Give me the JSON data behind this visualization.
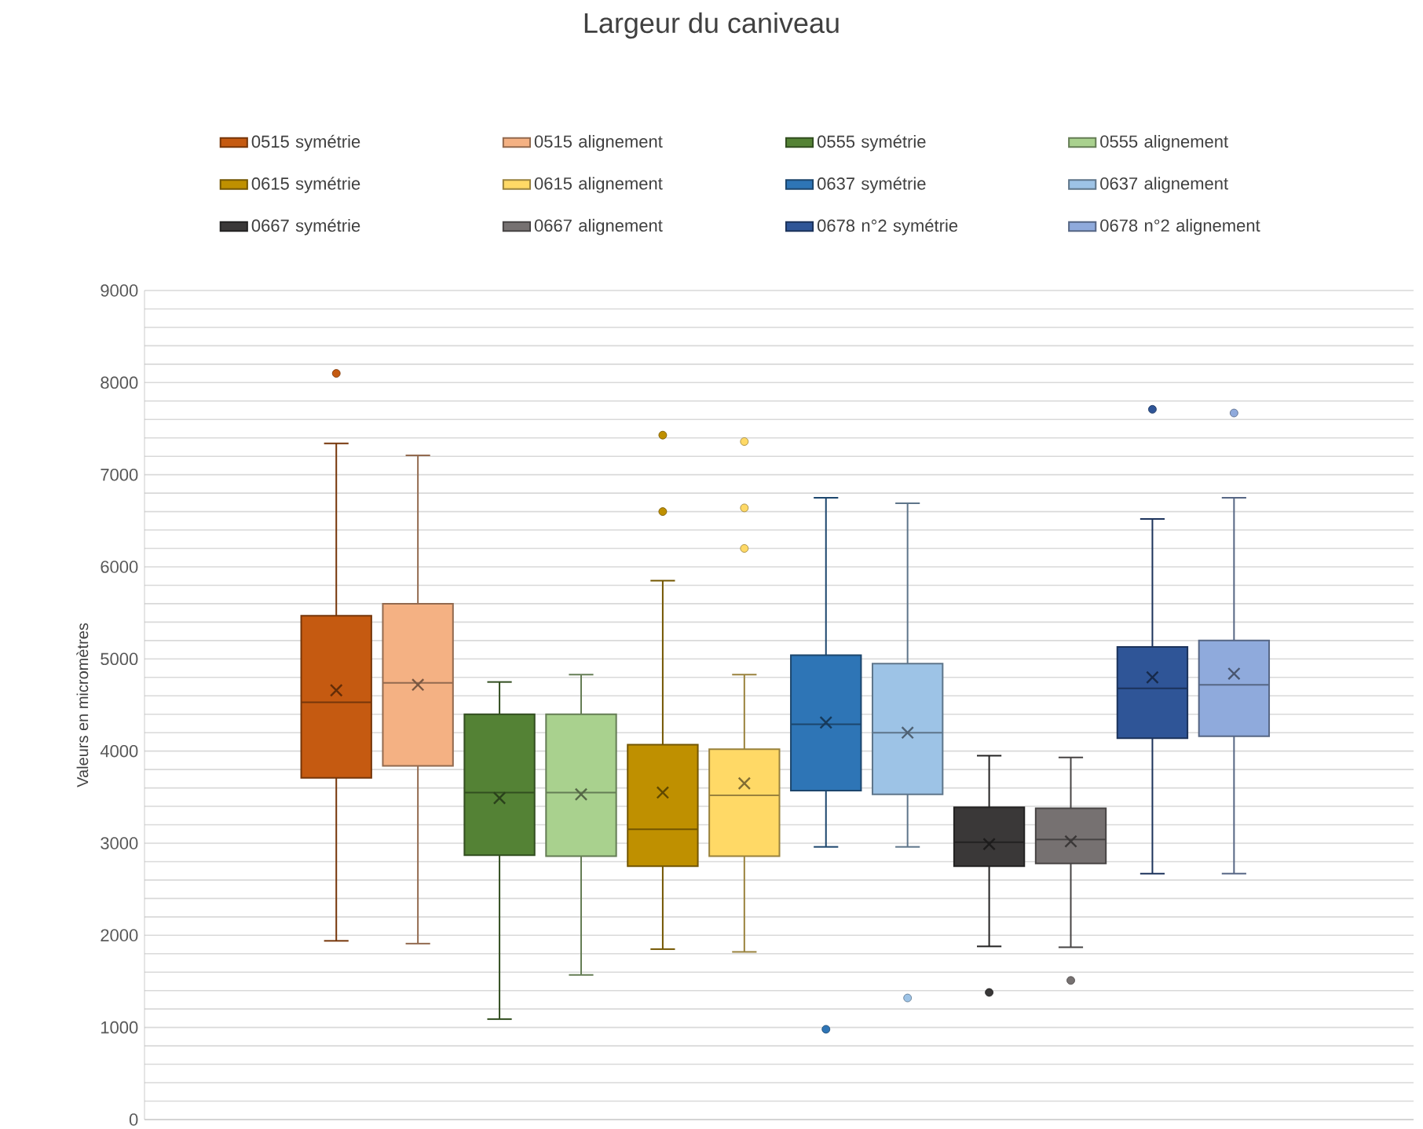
{
  "chart_data": {
    "type": "box",
    "title": "Largeur du caniveau",
    "ylabel": "Valeurs en micromètres",
    "categories": [
      null
    ],
    "ylim": [
      0,
      9000
    ],
    "yticks": [
      0,
      {
        "value": 200,
        "label": null
      },
      {
        "value": 400,
        "label": null
      },
      {
        "value": 600,
        "label": null
      },
      {
        "value": 800,
        "label": null
      },
      1000,
      {
        "value": 1200,
        "label": null
      },
      {
        "value": 1400,
        "label": null
      },
      {
        "value": 1600,
        "label": null
      },
      {
        "value": 1800,
        "label": null
      },
      2000,
      {
        "value": 2200,
        "label": null
      },
      {
        "value": 2400,
        "label": null
      },
      {
        "value": 2600,
        "label": null
      },
      {
        "value": 2800,
        "label": null
      },
      3000,
      {
        "value": 3200,
        "label": null
      },
      {
        "value": 3400,
        "label": null
      },
      {
        "value": 3600,
        "label": null
      },
      {
        "value": 3800,
        "label": null
      },
      4000,
      {
        "value": 4200,
        "label": null
      },
      {
        "value": 4400,
        "label": null
      },
      {
        "value": 4600,
        "label": null
      },
      {
        "value": 4800,
        "label": null
      },
      5000,
      {
        "value": 5200,
        "label": null
      },
      {
        "value": 5400,
        "label": null
      },
      {
        "value": 5600,
        "label": null
      },
      {
        "value": 5800,
        "label": null
      },
      6000,
      {
        "value": 6200,
        "label": null
      },
      {
        "value": 6400,
        "label": null
      },
      {
        "value": 6600,
        "label": null
      },
      {
        "value": 6800,
        "label": null
      },
      7000,
      {
        "value": 7200,
        "label": null
      },
      {
        "value": 7400,
        "label": null
      },
      {
        "value": 7600,
        "label": null
      },
      {
        "value": 7800,
        "label": null
      },
      8000,
      {
        "value": 8200,
        "label": null
      },
      {
        "value": 8400,
        "label": null
      },
      {
        "value": 8600,
        "label": null
      },
      {
        "value": 8800,
        "label": null
      },
      9000
    ],
    "grid": "y",
    "legend": "top",
    "series": [
      {
        "name": "0515 symétrie",
        "color": "#c55a11",
        "boxes": [
          {
            "low": 1940,
            "q1": 3710,
            "median": 4530,
            "q3": 5470,
            "high": 7340,
            "mean": 4660,
            "outliers": [
              8100
            ]
          }
        ]
      },
      {
        "name": "0515 alignement",
        "color": "#f4b183",
        "boxes": [
          {
            "low": 1910,
            "q1": 3840,
            "median": 4740,
            "q3": 5600,
            "high": 7210,
            "mean": 4720
          }
        ]
      },
      {
        "name": "0555 symétrie",
        "color": "#548235",
        "boxes": [
          {
            "low": 1090,
            "q1": 2870,
            "median": 3550,
            "q3": 4400,
            "high": 4750,
            "mean": 3490
          }
        ]
      },
      {
        "name": "0555 alignement",
        "color": "#a9d18e",
        "boxes": [
          {
            "low": 1570,
            "q1": 2860,
            "median": 3550,
            "q3": 4400,
            "high": 4830,
            "mean": 3530
          }
        ]
      },
      {
        "name": "0615 symétrie",
        "color": "#bf9000",
        "boxes": [
          {
            "low": 1850,
            "q1": 2750,
            "median": 3150,
            "q3": 4070,
            "high": 5850,
            "mean": 3550,
            "outliers": [
              7430,
              6600
            ]
          }
        ]
      },
      {
        "name": "0615 alignement",
        "color": "#ffd966",
        "boxes": [
          {
            "low": 1820,
            "q1": 2860,
            "median": 3520,
            "q3": 4020,
            "high": 4830,
            "mean": 3650,
            "outliers": [
              7360,
              6640,
              6200
            ]
          }
        ]
      },
      {
        "name": "0637 symétrie",
        "color": "#2e75b6",
        "boxes": [
          {
            "low": 2960,
            "q1": 3570,
            "median": 4290,
            "q3": 5040,
            "high": 6750,
            "mean": 4310,
            "outliers": [
              980
            ]
          }
        ]
      },
      {
        "name": "0637 alignement",
        "color": "#9dc3e6",
        "boxes": [
          {
            "low": 2960,
            "q1": 3530,
            "median": 4200,
            "q3": 4950,
            "high": 6690,
            "mean": 4200,
            "outliers": [
              1320
            ]
          }
        ]
      },
      {
        "name": "0667 symétrie",
        "color": "#3a3838",
        "boxes": [
          {
            "low": 1880,
            "q1": 2750,
            "median": 3010,
            "q3": 3390,
            "high": 3950,
            "mean": 2990,
            "outliers": [
              1380
            ]
          }
        ]
      },
      {
        "name": "0667 alignement",
        "color": "#767171",
        "boxes": [
          {
            "low": 1870,
            "q1": 2780,
            "median": 3040,
            "q3": 3380,
            "high": 3930,
            "mean": 3020,
            "outliers": [
              1510
            ]
          }
        ]
      },
      {
        "name": "0678 n°2 symétrie",
        "color": "#2f5597",
        "boxes": [
          {
            "low": 2670,
            "q1": 4140,
            "median": 4680,
            "q3": 5130,
            "high": 6520,
            "mean": 4800,
            "outliers": [
              7710
            ]
          }
        ]
      },
      {
        "name": "0678 n°2 alignement",
        "color": "#8faadc",
        "boxes": [
          {
            "low": 2670,
            "q1": 4160,
            "median": 4720,
            "q3": 5200,
            "high": 6750,
            "mean": 4840,
            "outliers": [
              7670
            ]
          }
        ]
      }
    ]
  }
}
